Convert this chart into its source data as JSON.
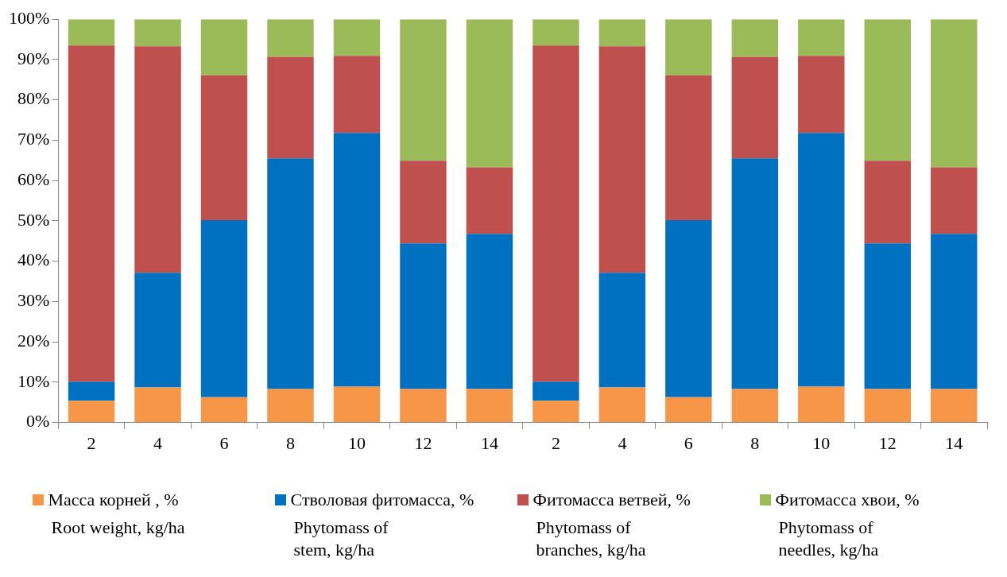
{
  "chart_data": {
    "type": "bar",
    "stacked": true,
    "categories": [
      "2",
      "4",
      "6",
      "8",
      "10",
      "12",
      "14",
      "2",
      "4",
      "6",
      "8",
      "10",
      "12",
      "14"
    ],
    "series": [
      {
        "name": "Масса корней , %",
        "color": "#f79646",
        "values": [
          5.4,
          8.7,
          6.3,
          8.3,
          8.9,
          8.3,
          8.3,
          5.4,
          8.7,
          6.3,
          8.3,
          8.9,
          8.3,
          8.3
        ]
      },
      {
        "name": "Стволовая фитомасса, %",
        "color": "#0070c0",
        "values": [
          4.7,
          28.4,
          43.9,
          57.2,
          62.9,
          36.1,
          38.5,
          4.7,
          28.4,
          43.9,
          57.2,
          62.9,
          36.1,
          38.5
        ]
      },
      {
        "name": "Фитомасса ветвей, %",
        "color": "#c0504d",
        "values": [
          83.4,
          56.2,
          35.9,
          25.2,
          19.1,
          20.5,
          16.5,
          83.4,
          56.2,
          35.9,
          25.2,
          19.1,
          20.5,
          16.5
        ]
      },
      {
        "name": "Фитомасса хвои, %",
        "color": "#9bbb59",
        "values": [
          6.5,
          6.7,
          13.9,
          9.3,
          9.1,
          35.1,
          36.7,
          6.5,
          6.7,
          13.9,
          9.3,
          9.1,
          35.1,
          36.7
        ]
      }
    ],
    "ylim": [
      0,
      100
    ],
    "yticks": [
      {
        "value": 0,
        "label": "0%"
      },
      {
        "value": 10,
        "label": "10%"
      },
      {
        "value": 20,
        "label": "20%"
      },
      {
        "value": 30,
        "label": "30%"
      },
      {
        "value": 40,
        "label": "40%"
      },
      {
        "value": 50,
        "label": "50%"
      },
      {
        "value": 60,
        "label": "60%"
      },
      {
        "value": 70,
        "label": "70%"
      },
      {
        "value": 80,
        "label": "80%"
      },
      {
        "value": 90,
        "label": "90%"
      },
      {
        "value": 100,
        "label": "100%"
      }
    ],
    "grid": false,
    "legend": "bottom",
    "annotations": [
      "Root weight, kg/ha",
      "Phytomass of stem, kg/ha",
      "Phytomass of branches, kg/ha",
      "Phytomass of needles, kg/ha"
    ]
  }
}
